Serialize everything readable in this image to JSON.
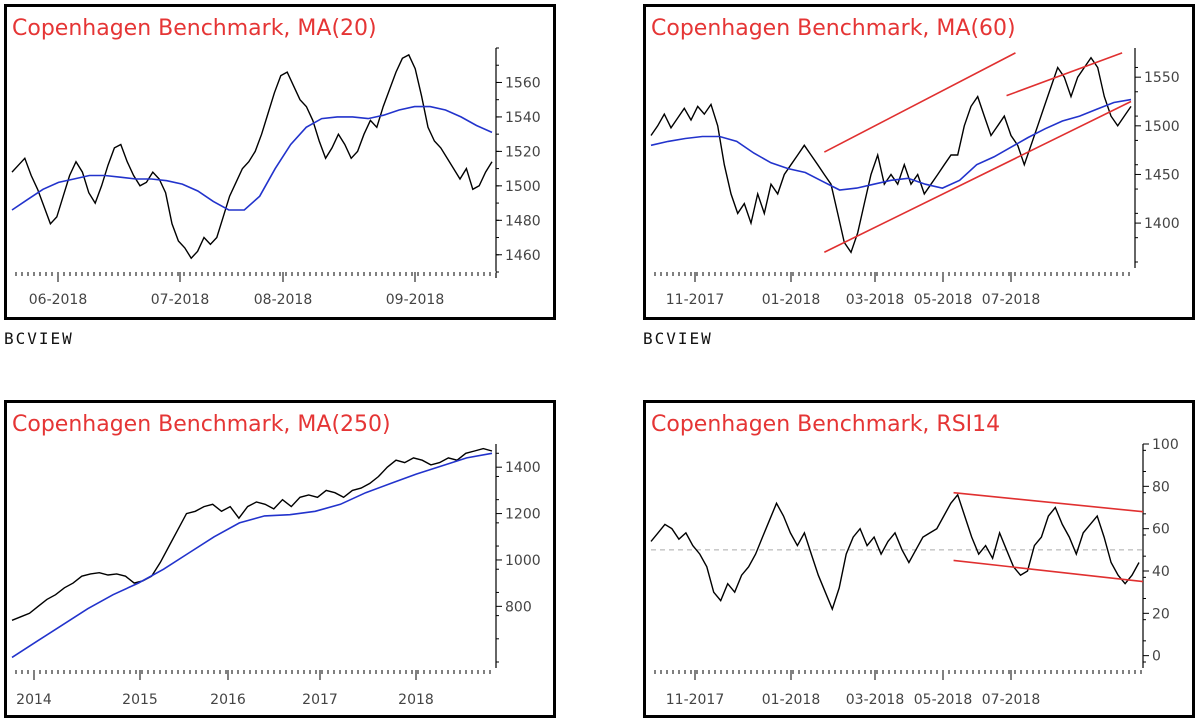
{
  "panels": [
    {
      "title": "Copenhagen Benchmark, MA(20)",
      "brand": "BCVIEW",
      "chart_data": {
        "type": "line",
        "title": "Copenhagen Benchmark, MA(20)",
        "x_tick_labels": [
          "06-2018",
          "07-2018",
          "08-2018",
          "09-2018"
        ],
        "ylim": [
          1450,
          1580
        ],
        "y_ticks": [
          1460,
          1480,
          1500,
          1520,
          1540,
          1560
        ],
        "series": [
          {
            "name": "",
            "color": "#000000",
            "values": [
              1508,
              1512,
              1516,
              1506,
              1498,
              1488,
              1478,
              1482,
              1494,
              1506,
              1514,
              1508,
              1496,
              1490,
              1500,
              1512,
              1522,
              1524,
              1514,
              1506,
              1500,
              1502,
              1508,
              1504,
              1496,
              1478,
              1468,
              1464,
              1458,
              1462,
              1470,
              1466,
              1470,
              1482,
              1494,
              1502,
              1510,
              1514,
              1520,
              1530,
              1542,
              1554,
              1564,
              1566,
              1558,
              1550,
              1546,
              1538,
              1526,
              1516,
              1522,
              1530,
              1524,
              1516,
              1520,
              1530,
              1538,
              1534,
              1546,
              1556,
              1566,
              1574,
              1576,
              1568,
              1552,
              1534,
              1526,
              1522,
              1516,
              1510,
              1504,
              1510,
              1498,
              1500,
              1508,
              1514
            ]
          },
          {
            "name": "",
            "color": "#2233cc",
            "values": [
              1486,
              1492,
              1498,
              1502,
              1504,
              1506,
              1506,
              1505,
              1504,
              1504,
              1503,
              1501,
              1497,
              1491,
              1486,
              1486,
              1494,
              1510,
              1524,
              1534,
              1539,
              1540,
              1540,
              1539,
              1541,
              1544,
              1546,
              1546,
              1544,
              1540,
              1535,
              1531
            ]
          }
        ]
      }
    },
    {
      "title": "Copenhagen Benchmark, MA(60)",
      "brand": "BCVIEW",
      "chart_data": {
        "type": "line",
        "title": "Copenhagen Benchmark, MA(60)",
        "x_tick_labels": [
          "11-2017",
          "01-2018",
          "03-2018",
          "05-2018",
          "07-2018"
        ],
        "ylim": [
          1360,
          1580
        ],
        "y_ticks": [
          1400,
          1450,
          1500,
          1550
        ],
        "series": [
          {
            "name": "",
            "color": "#000000",
            "values": [
              1490,
              1500,
              1512,
              1498,
              1508,
              1518,
              1506,
              1520,
              1512,
              1522,
              1500,
              1460,
              1430,
              1410,
              1420,
              1400,
              1430,
              1410,
              1440,
              1430,
              1450,
              1460,
              1470,
              1480,
              1470,
              1460,
              1450,
              1440,
              1410,
              1380,
              1370,
              1390,
              1420,
              1450,
              1470,
              1440,
              1450,
              1440,
              1460,
              1440,
              1450,
              1430,
              1440,
              1450,
              1460,
              1470,
              1470,
              1500,
              1520,
              1530,
              1510,
              1490,
              1500,
              1510,
              1490,
              1480,
              1460,
              1480,
              1500,
              1520,
              1540,
              1560,
              1550,
              1530,
              1550,
              1560,
              1570,
              1560,
              1530,
              1510,
              1500,
              1510,
              1520
            ]
          },
          {
            "name": "",
            "color": "#2233cc",
            "values": [
              1480,
              1484,
              1487,
              1489,
              1489,
              1484,
              1472,
              1462,
              1456,
              1452,
              1443,
              1434,
              1436,
              1440,
              1444,
              1446,
              1440,
              1436,
              1444,
              1460,
              1468,
              1478,
              1488,
              1497,
              1505,
              1510,
              1517,
              1524,
              1527
            ]
          }
        ],
        "annotations": [
          {
            "type": "trendline",
            "color": "#e03030",
            "from": [
              39,
              1370
            ],
            "to": [
              108,
              1525
            ]
          },
          {
            "type": "trendline",
            "color": "#e03030",
            "from": [
              39,
              1473
            ],
            "to": [
              82,
              1575
            ]
          },
          {
            "type": "trendline",
            "color": "#e03030",
            "from": [
              80,
              1531
            ],
            "to": [
              106,
              1575
            ]
          }
        ]
      }
    },
    {
      "title": "Copenhagen Benchmark, MA(250)",
      "brand": "",
      "chart_data": {
        "type": "line",
        "title": "Copenhagen Benchmark, MA(250)",
        "x_tick_labels": [
          "2014",
          "2015",
          "2016",
          "2017",
          "2018"
        ],
        "ylim": [
          560,
          1500
        ],
        "y_ticks": [
          800,
          1000,
          1200,
          1400
        ],
        "series": [
          {
            "name": "",
            "color": "#000000",
            "values": [
              740,
              755,
              770,
              800,
              830,
              850,
              880,
              900,
              930,
              940,
              945,
              935,
              940,
              930,
              900,
              910,
              930,
              990,
              1060,
              1130,
              1200,
              1210,
              1230,
              1240,
              1210,
              1230,
              1180,
              1230,
              1250,
              1240,
              1220,
              1260,
              1230,
              1270,
              1280,
              1270,
              1300,
              1290,
              1270,
              1300,
              1310,
              1330,
              1360,
              1400,
              1430,
              1420,
              1440,
              1430,
              1410,
              1420,
              1440,
              1430,
              1460,
              1470,
              1480,
              1470
            ]
          },
          {
            "name": "",
            "color": "#2233cc",
            "values": [
              580,
              650,
              720,
              790,
              850,
              900,
              960,
              1030,
              1100,
              1160,
              1190,
              1195,
              1210,
              1240,
              1290,
              1330,
              1370,
              1405,
              1440,
              1460
            ]
          }
        ]
      }
    },
    {
      "title": "Copenhagen Benchmark, RSI14",
      "brand": "",
      "chart_data": {
        "type": "line",
        "title": "Copenhagen Benchmark, RSI14",
        "x_tick_labels": [
          "11-2017",
          "01-2018",
          "03-2018",
          "05-2018",
          "07-2018"
        ],
        "ylim": [
          -3,
          100
        ],
        "y_ticks": [
          0,
          20,
          40,
          60,
          80,
          100
        ],
        "series": [
          {
            "name": "",
            "color": "#000000",
            "values": [
              54,
              58,
              62,
              60,
              55,
              58,
              52,
              48,
              42,
              30,
              26,
              34,
              30,
              38,
              42,
              48,
              56,
              64,
              72,
              66,
              58,
              52,
              58,
              48,
              38,
              30,
              22,
              32,
              48,
              56,
              60,
              52,
              56,
              48,
              54,
              58,
              50,
              44,
              50,
              56,
              58,
              60,
              66,
              72,
              76,
              66,
              56,
              48,
              52,
              46,
              58,
              50,
              42,
              38,
              40,
              52,
              56,
              66,
              70,
              62,
              56,
              48,
              58,
              62,
              66,
              56,
              44,
              38,
              34,
              38,
              44
            ]
          }
        ],
        "reference_line": 50,
        "annotations": [
          {
            "type": "trendline",
            "color": "#e03030",
            "from": [
              0,
              77
            ],
            "to": [
              1,
              68
            ]
          },
          {
            "type": "trendline",
            "color": "#e03030",
            "from": [
              0,
              45
            ],
            "to": [
              1,
              35
            ]
          }
        ]
      }
    }
  ]
}
